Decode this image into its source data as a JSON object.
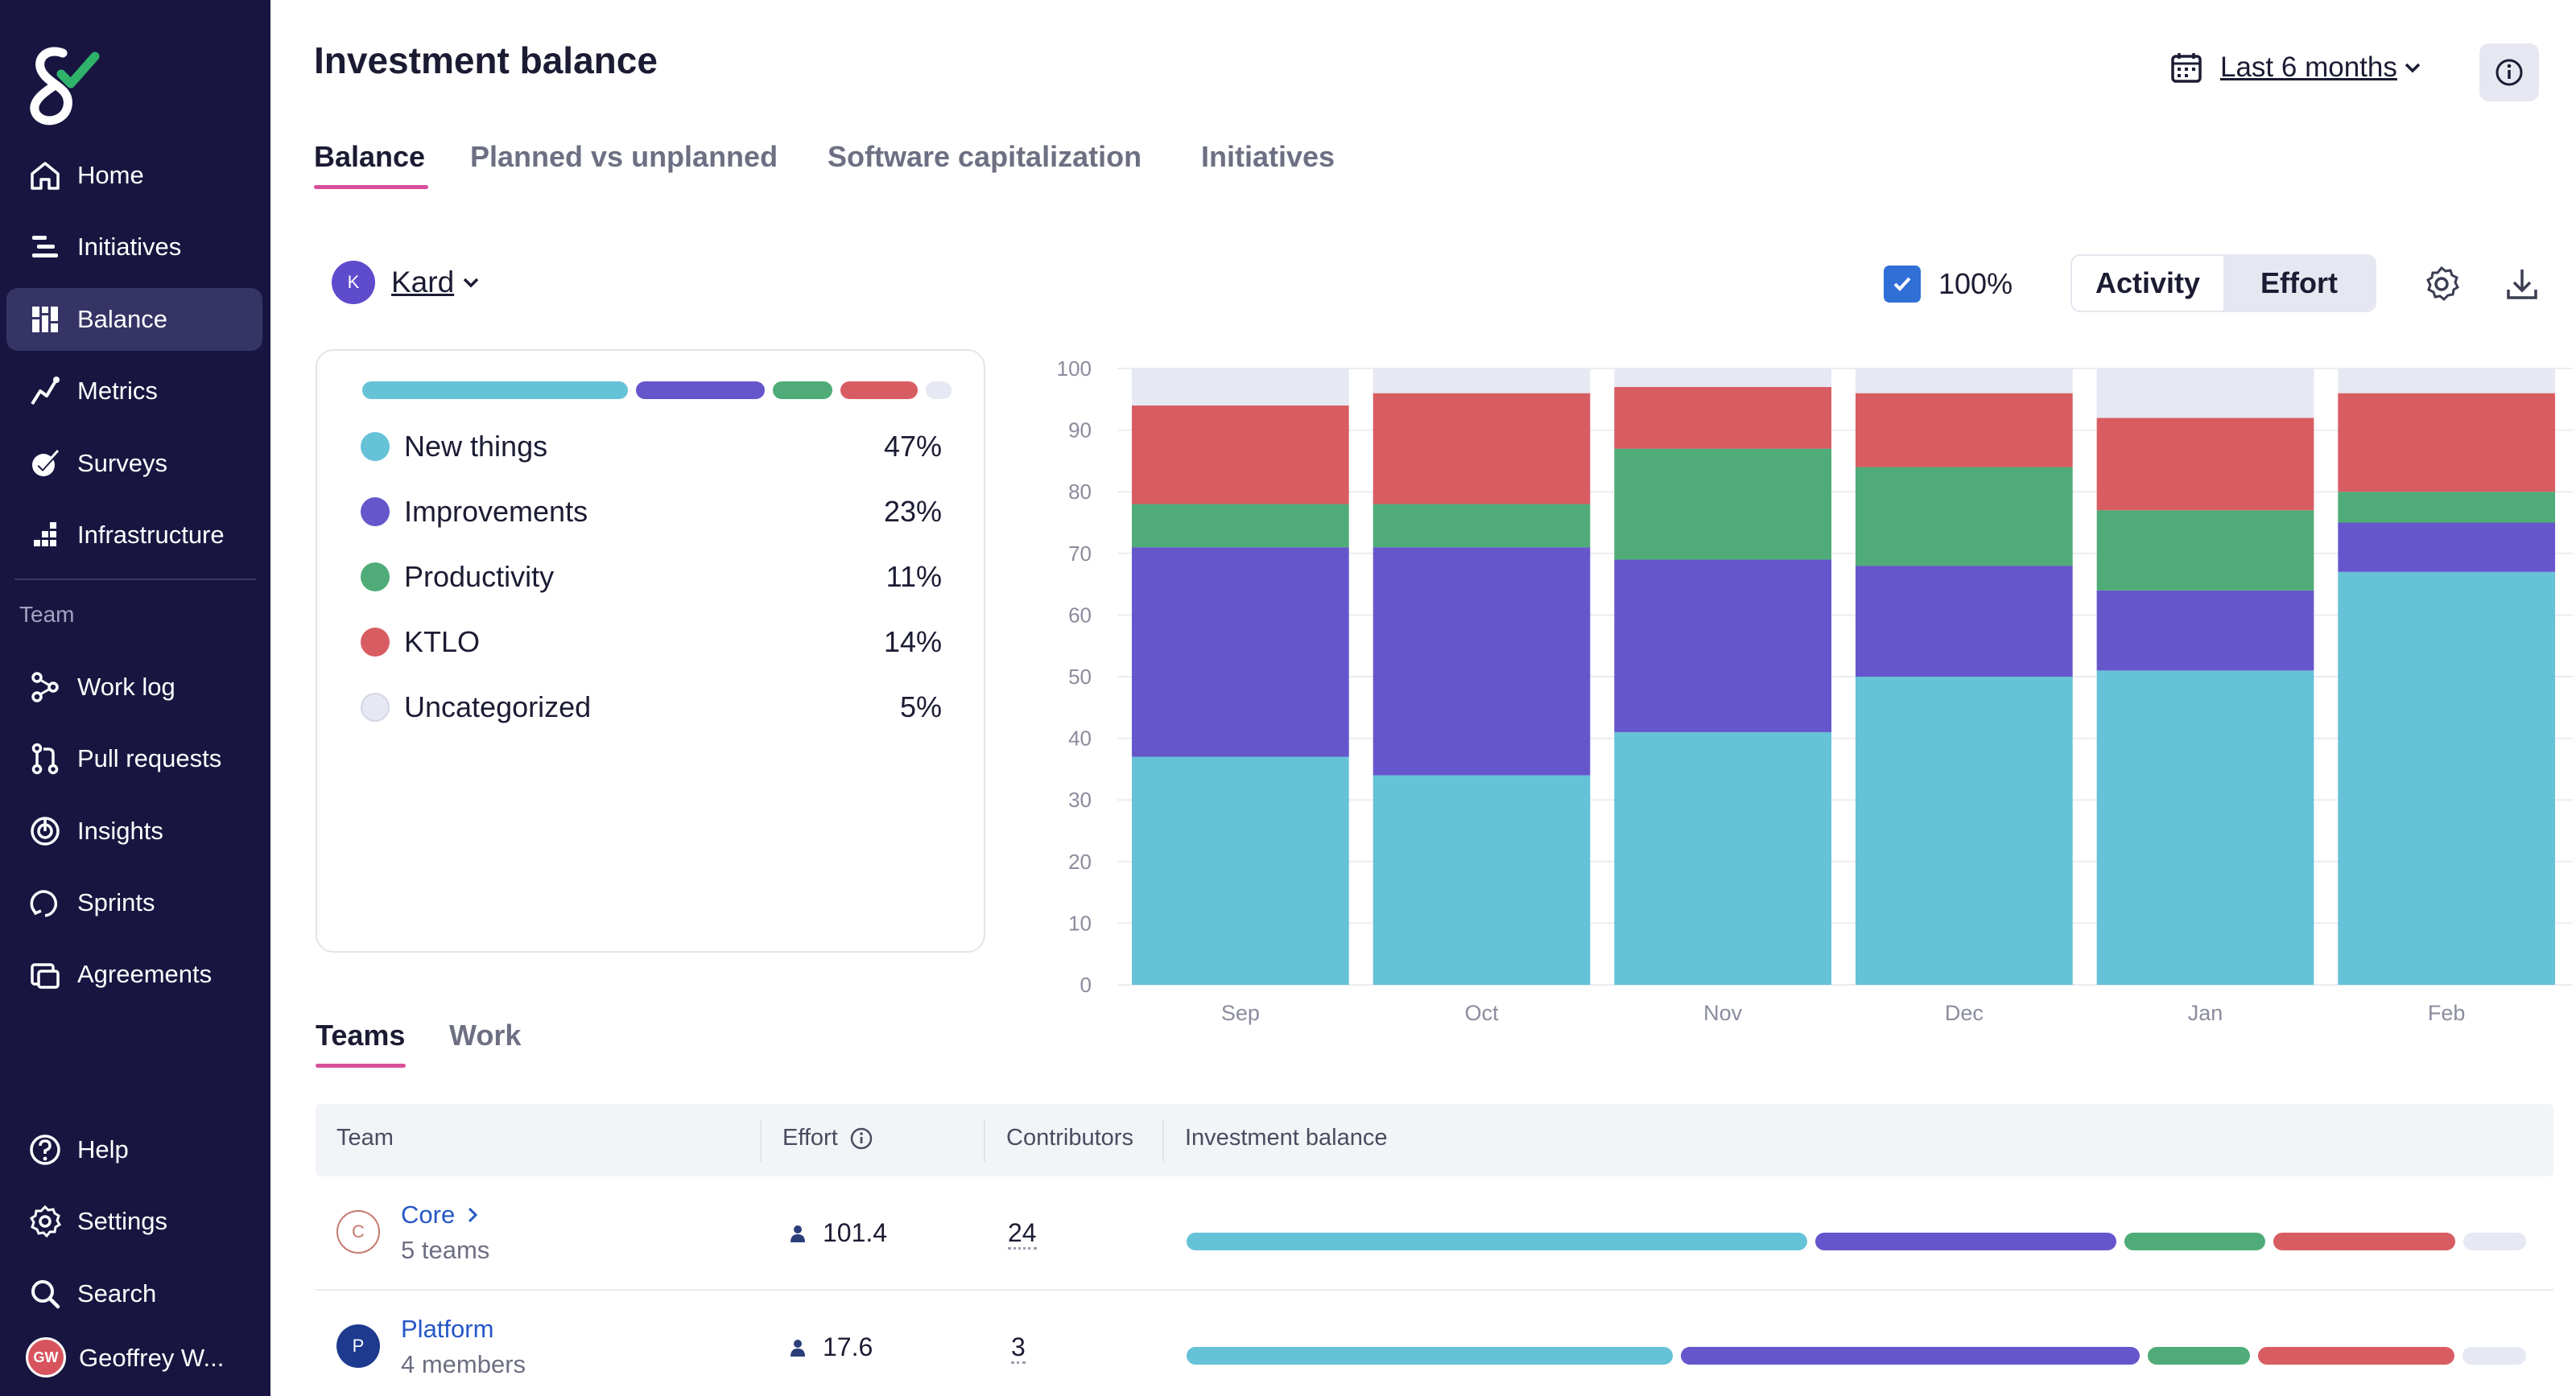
{
  "sidebar": {
    "items": [
      {
        "label": "Home",
        "icon": "home-icon"
      },
      {
        "label": "Initiatives",
        "icon": "initiatives-icon"
      },
      {
        "label": "Balance",
        "icon": "balance-grid-icon"
      },
      {
        "label": "Metrics",
        "icon": "metrics-icon"
      },
      {
        "label": "Surveys",
        "icon": "surveys-icon"
      },
      {
        "label": "Infrastructure",
        "icon": "infrastructure-icon"
      }
    ],
    "section_label": "Team",
    "team_items": [
      {
        "label": "Work log",
        "icon": "work-log-icon"
      },
      {
        "label": "Pull requests",
        "icon": "pull-request-icon"
      },
      {
        "label": "Insights",
        "icon": "insights-icon"
      },
      {
        "label": "Sprints",
        "icon": "sprints-icon"
      },
      {
        "label": "Agreements",
        "icon": "agreements-icon"
      }
    ],
    "bottom_items": [
      {
        "label": "Help",
        "icon": "help-icon"
      },
      {
        "label": "Settings",
        "icon": "settings-icon"
      },
      {
        "label": "Search",
        "icon": "search-icon"
      }
    ],
    "user": {
      "initials": "GW",
      "name": "Geoffrey W..."
    }
  },
  "header": {
    "title": "Investment balance",
    "date_range": "Last 6 months"
  },
  "tabs": [
    "Balance",
    "Planned vs unplanned",
    "Software capitalization",
    "Initiatives"
  ],
  "controls": {
    "team_initial": "K",
    "team_name": "Kard",
    "percent_label": "100%",
    "toggle": [
      "Activity",
      "Effort"
    ]
  },
  "colors": {
    "new_things": "#65c2d7",
    "improvements": "#6656cc",
    "productivity": "#4fac78",
    "ktlo": "#d85d63",
    "uncategorized": "#e6e8f3"
  },
  "legend": [
    {
      "name": "New things",
      "pct": "47%",
      "color": "#65c2d7"
    },
    {
      "name": "Improvements",
      "pct": "23%",
      "color": "#6656cc"
    },
    {
      "name": "Productivity",
      "pct": "11%",
      "color": "#4fac78"
    },
    {
      "name": "KTLO",
      "pct": "14%",
      "color": "#d85d63"
    },
    {
      "name": "Uncategorized",
      "pct": "5%",
      "color": "#e6e8f3"
    }
  ],
  "chart_data": {
    "type": "bar",
    "stacked": true,
    "categories": [
      "Sep",
      "Oct",
      "Nov",
      "Dec",
      "Jan",
      "Feb"
    ],
    "ylim": [
      0,
      100
    ],
    "yticks": [
      0,
      10,
      20,
      30,
      40,
      50,
      60,
      70,
      80,
      90,
      100
    ],
    "series": [
      {
        "name": "New things",
        "color": "#65c2d7",
        "values": [
          37,
          34,
          41,
          50,
          51,
          67
        ]
      },
      {
        "name": "Improvements",
        "color": "#6656cc",
        "values": [
          34,
          37,
          28,
          18,
          13,
          8
        ]
      },
      {
        "name": "Productivity",
        "color": "#4fac78",
        "values": [
          7,
          7,
          18,
          16,
          13,
          5
        ]
      },
      {
        "name": "KTLO",
        "color": "#d85d63",
        "values": [
          16,
          18,
          10,
          12,
          15,
          16
        ]
      },
      {
        "name": "Uncategorized",
        "color": "#e6e8f3",
        "values": [
          6,
          4,
          3,
          4,
          8,
          4
        ]
      }
    ]
  },
  "bottom_tabs": [
    "Teams",
    "Work"
  ],
  "table": {
    "columns": [
      "Team",
      "Effort",
      "Contributors",
      "Investment balance"
    ],
    "rows": [
      {
        "initial": "C",
        "name": "Core",
        "sub": "5 teams",
        "effort": "101.4",
        "contributors": "24",
        "balance": [
          47,
          23,
          11,
          14,
          5
        ]
      },
      {
        "initial": "P",
        "name": "Platform",
        "sub": "4 members",
        "effort": "17.6",
        "contributors": "3",
        "balance": [
          36,
          34,
          8,
          15,
          5
        ]
      }
    ]
  }
}
